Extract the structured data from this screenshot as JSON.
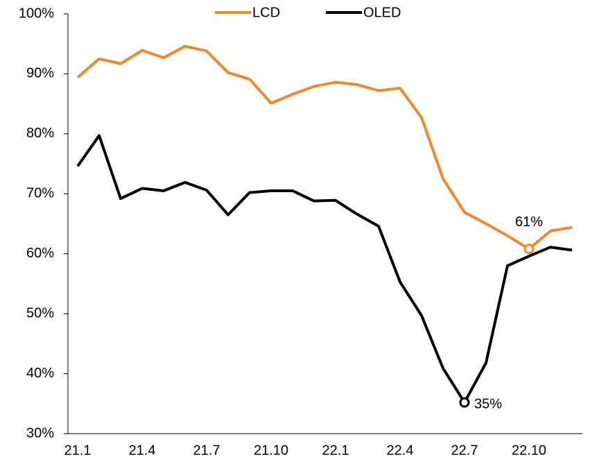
{
  "chart_data": {
    "type": "line",
    "categories": [
      "21.1",
      null,
      null,
      "21.4",
      null,
      null,
      "21.7",
      null,
      null,
      "21.10",
      null,
      null,
      "22.1",
      null,
      null,
      "22.4",
      null,
      null,
      "22.7",
      null,
      null,
      "22.10",
      null,
      null
    ],
    "series": [
      {
        "name": "LCD",
        "color": "#f0892c",
        "values": [
          89.4,
          92.5,
          91.7,
          93.9,
          92.7,
          94.6,
          93.8,
          90.2,
          89.1,
          85.1,
          86.6,
          87.9,
          88.6,
          88.2,
          87.2,
          87.6,
          82.7,
          72.5,
          66.9,
          65.0,
          63.0,
          60.8,
          63.8,
          64.4
        ],
        "value_labels": [
          null,
          null,
          null,
          null,
          null,
          null,
          null,
          null,
          null,
          null,
          null,
          null,
          null,
          null,
          null,
          null,
          null,
          null,
          null,
          null,
          null,
          "61%",
          null,
          null
        ]
      },
      {
        "name": "OLED",
        "color": "#000000",
        "values": [
          74.6,
          79.7,
          69.2,
          70.9,
          70.5,
          71.9,
          70.6,
          66.5,
          70.2,
          70.5,
          70.5,
          68.8,
          68.9,
          66.6,
          64.6,
          55.3,
          49.7,
          40.9,
          35.2,
          41.8,
          58.0,
          59.6,
          61.1,
          60.6
        ],
        "value_labels": [
          null,
          null,
          null,
          null,
          null,
          null,
          null,
          null,
          null,
          null,
          null,
          null,
          null,
          null,
          null,
          null,
          null,
          null,
          "35%",
          null,
          null,
          null,
          null,
          null
        ]
      }
    ],
    "ylim": [
      30,
      100
    ],
    "yticks": [
      {
        "value": 30,
        "label": "30%"
      },
      {
        "value": 40,
        "label": "40%"
      },
      {
        "value": 50,
        "label": "50%"
      },
      {
        "value": 60,
        "label": "60%"
      },
      {
        "value": 70,
        "label": "70%"
      },
      {
        "value": 80,
        "label": "80%"
      },
      {
        "value": 90,
        "label": "90%"
      },
      {
        "value": 100,
        "label": "100%"
      }
    ],
    "grid": false,
    "legend": "top"
  }
}
